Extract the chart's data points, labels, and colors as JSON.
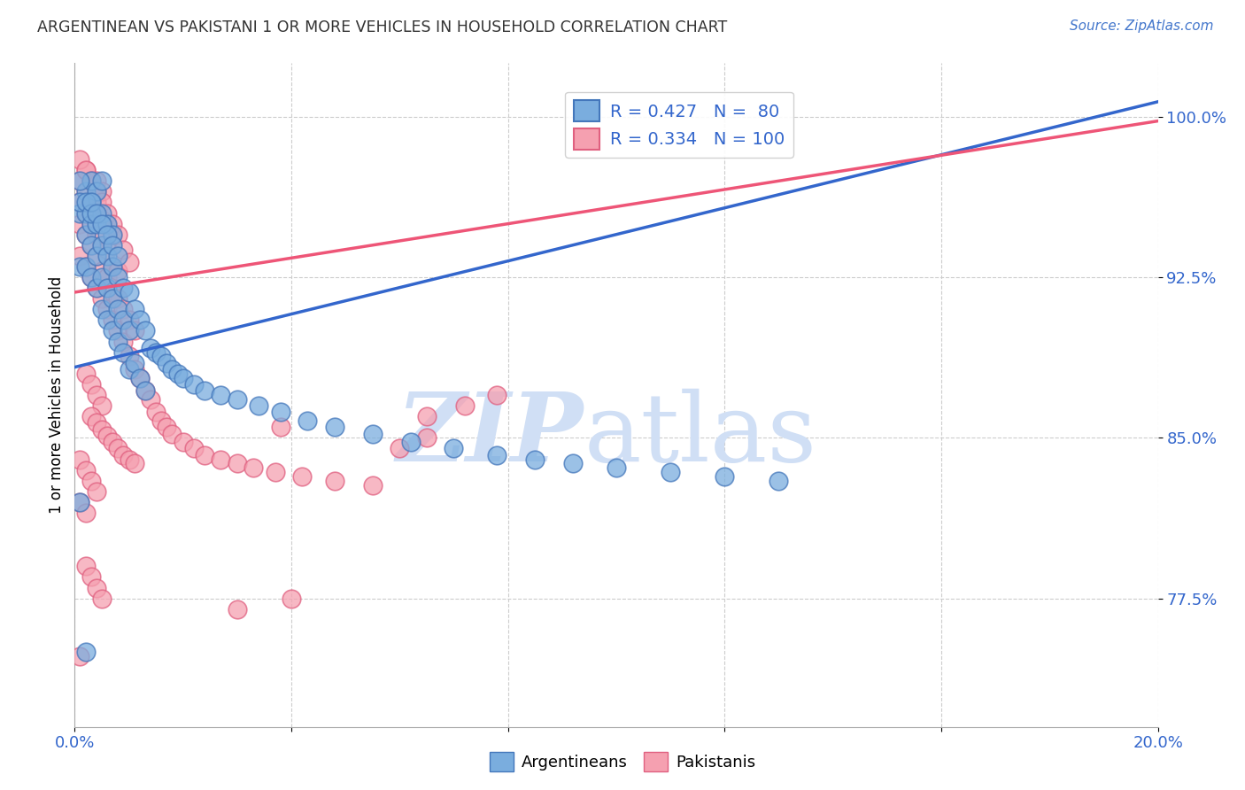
{
  "title": "ARGENTINEAN VS PAKISTANI 1 OR MORE VEHICLES IN HOUSEHOLD CORRELATION CHART",
  "source": "Source: ZipAtlas.com",
  "ylabel": "1 or more Vehicles in Household",
  "ytick_labels": [
    "100.0%",
    "92.5%",
    "85.0%",
    "77.5%"
  ],
  "ytick_values": [
    1.0,
    0.925,
    0.85,
    0.775
  ],
  "xlim": [
    0.0,
    0.2
  ],
  "ylim": [
    0.715,
    1.025
  ],
  "r_blue": 0.427,
  "n_blue": 80,
  "r_pink": 0.334,
  "n_pink": 100,
  "blue_color": "#7aadde",
  "pink_color": "#f5a0b0",
  "blue_edge_color": "#4477bb",
  "pink_edge_color": "#e06080",
  "blue_line_color": "#3366cc",
  "pink_line_color": "#ee5577",
  "watermark_zip": "ZIP",
  "watermark_atlas": "atlas",
  "watermark_color": "#d0dff5",
  "blue_scatter_x": [
    0.001,
    0.001,
    0.001,
    0.002,
    0.002,
    0.002,
    0.002,
    0.003,
    0.003,
    0.003,
    0.003,
    0.003,
    0.004,
    0.004,
    0.004,
    0.004,
    0.005,
    0.005,
    0.005,
    0.005,
    0.005,
    0.006,
    0.006,
    0.006,
    0.006,
    0.007,
    0.007,
    0.007,
    0.007,
    0.008,
    0.008,
    0.008,
    0.009,
    0.009,
    0.009,
    0.01,
    0.01,
    0.01,
    0.011,
    0.011,
    0.012,
    0.012,
    0.013,
    0.013,
    0.014,
    0.015,
    0.016,
    0.017,
    0.018,
    0.019,
    0.02,
    0.022,
    0.024,
    0.027,
    0.03,
    0.034,
    0.038,
    0.043,
    0.048,
    0.055,
    0.062,
    0.07,
    0.078,
    0.085,
    0.092,
    0.1,
    0.11,
    0.12,
    0.13,
    0.002,
    0.001,
    0.001,
    0.002,
    0.003,
    0.003,
    0.004,
    0.005,
    0.006,
    0.007,
    0.008
  ],
  "blue_scatter_y": [
    0.82,
    0.93,
    0.955,
    0.93,
    0.945,
    0.955,
    0.965,
    0.925,
    0.94,
    0.95,
    0.96,
    0.97,
    0.92,
    0.935,
    0.95,
    0.965,
    0.91,
    0.925,
    0.94,
    0.955,
    0.97,
    0.905,
    0.92,
    0.935,
    0.95,
    0.9,
    0.915,
    0.93,
    0.945,
    0.895,
    0.91,
    0.925,
    0.89,
    0.905,
    0.92,
    0.882,
    0.9,
    0.918,
    0.885,
    0.91,
    0.878,
    0.905,
    0.872,
    0.9,
    0.892,
    0.89,
    0.888,
    0.885,
    0.882,
    0.88,
    0.878,
    0.875,
    0.872,
    0.87,
    0.868,
    0.865,
    0.862,
    0.858,
    0.855,
    0.852,
    0.848,
    0.845,
    0.842,
    0.84,
    0.838,
    0.836,
    0.834,
    0.832,
    0.83,
    0.75,
    0.96,
    0.97,
    0.96,
    0.955,
    0.96,
    0.955,
    0.95,
    0.945,
    0.94,
    0.935
  ],
  "pink_scatter_x": [
    0.001,
    0.001,
    0.001,
    0.001,
    0.002,
    0.002,
    0.002,
    0.002,
    0.002,
    0.003,
    0.003,
    0.003,
    0.003,
    0.003,
    0.004,
    0.004,
    0.004,
    0.004,
    0.004,
    0.005,
    0.005,
    0.005,
    0.005,
    0.005,
    0.006,
    0.006,
    0.006,
    0.006,
    0.007,
    0.007,
    0.007,
    0.007,
    0.008,
    0.008,
    0.008,
    0.009,
    0.009,
    0.01,
    0.01,
    0.011,
    0.011,
    0.012,
    0.013,
    0.014,
    0.015,
    0.016,
    0.017,
    0.018,
    0.02,
    0.022,
    0.024,
    0.027,
    0.03,
    0.033,
    0.037,
    0.042,
    0.048,
    0.055,
    0.06,
    0.065,
    0.001,
    0.002,
    0.003,
    0.004,
    0.005,
    0.006,
    0.007,
    0.008,
    0.009,
    0.01,
    0.002,
    0.003,
    0.004,
    0.005,
    0.001,
    0.002,
    0.003,
    0.004,
    0.001,
    0.002,
    0.038,
    0.065,
    0.072,
    0.078,
    0.002,
    0.003,
    0.004,
    0.005,
    0.03,
    0.04,
    0.003,
    0.004,
    0.005,
    0.006,
    0.007,
    0.008,
    0.009,
    0.01,
    0.011,
    0.001
  ],
  "pink_scatter_y": [
    0.935,
    0.95,
    0.96,
    0.97,
    0.93,
    0.945,
    0.955,
    0.965,
    0.975,
    0.925,
    0.94,
    0.95,
    0.96,
    0.97,
    0.92,
    0.935,
    0.945,
    0.96,
    0.97,
    0.915,
    0.928,
    0.94,
    0.952,
    0.965,
    0.91,
    0.925,
    0.938,
    0.95,
    0.905,
    0.918,
    0.93,
    0.945,
    0.9,
    0.915,
    0.928,
    0.895,
    0.91,
    0.888,
    0.905,
    0.882,
    0.9,
    0.878,
    0.872,
    0.868,
    0.862,
    0.858,
    0.855,
    0.852,
    0.848,
    0.845,
    0.842,
    0.84,
    0.838,
    0.836,
    0.834,
    0.832,
    0.83,
    0.828,
    0.845,
    0.85,
    0.98,
    0.975,
    0.97,
    0.965,
    0.96,
    0.955,
    0.95,
    0.945,
    0.938,
    0.932,
    0.88,
    0.875,
    0.87,
    0.865,
    0.84,
    0.835,
    0.83,
    0.825,
    0.82,
    0.815,
    0.855,
    0.86,
    0.865,
    0.87,
    0.79,
    0.785,
    0.78,
    0.775,
    0.77,
    0.775,
    0.86,
    0.857,
    0.854,
    0.851,
    0.848,
    0.845,
    0.842,
    0.84,
    0.838,
    0.748
  ]
}
